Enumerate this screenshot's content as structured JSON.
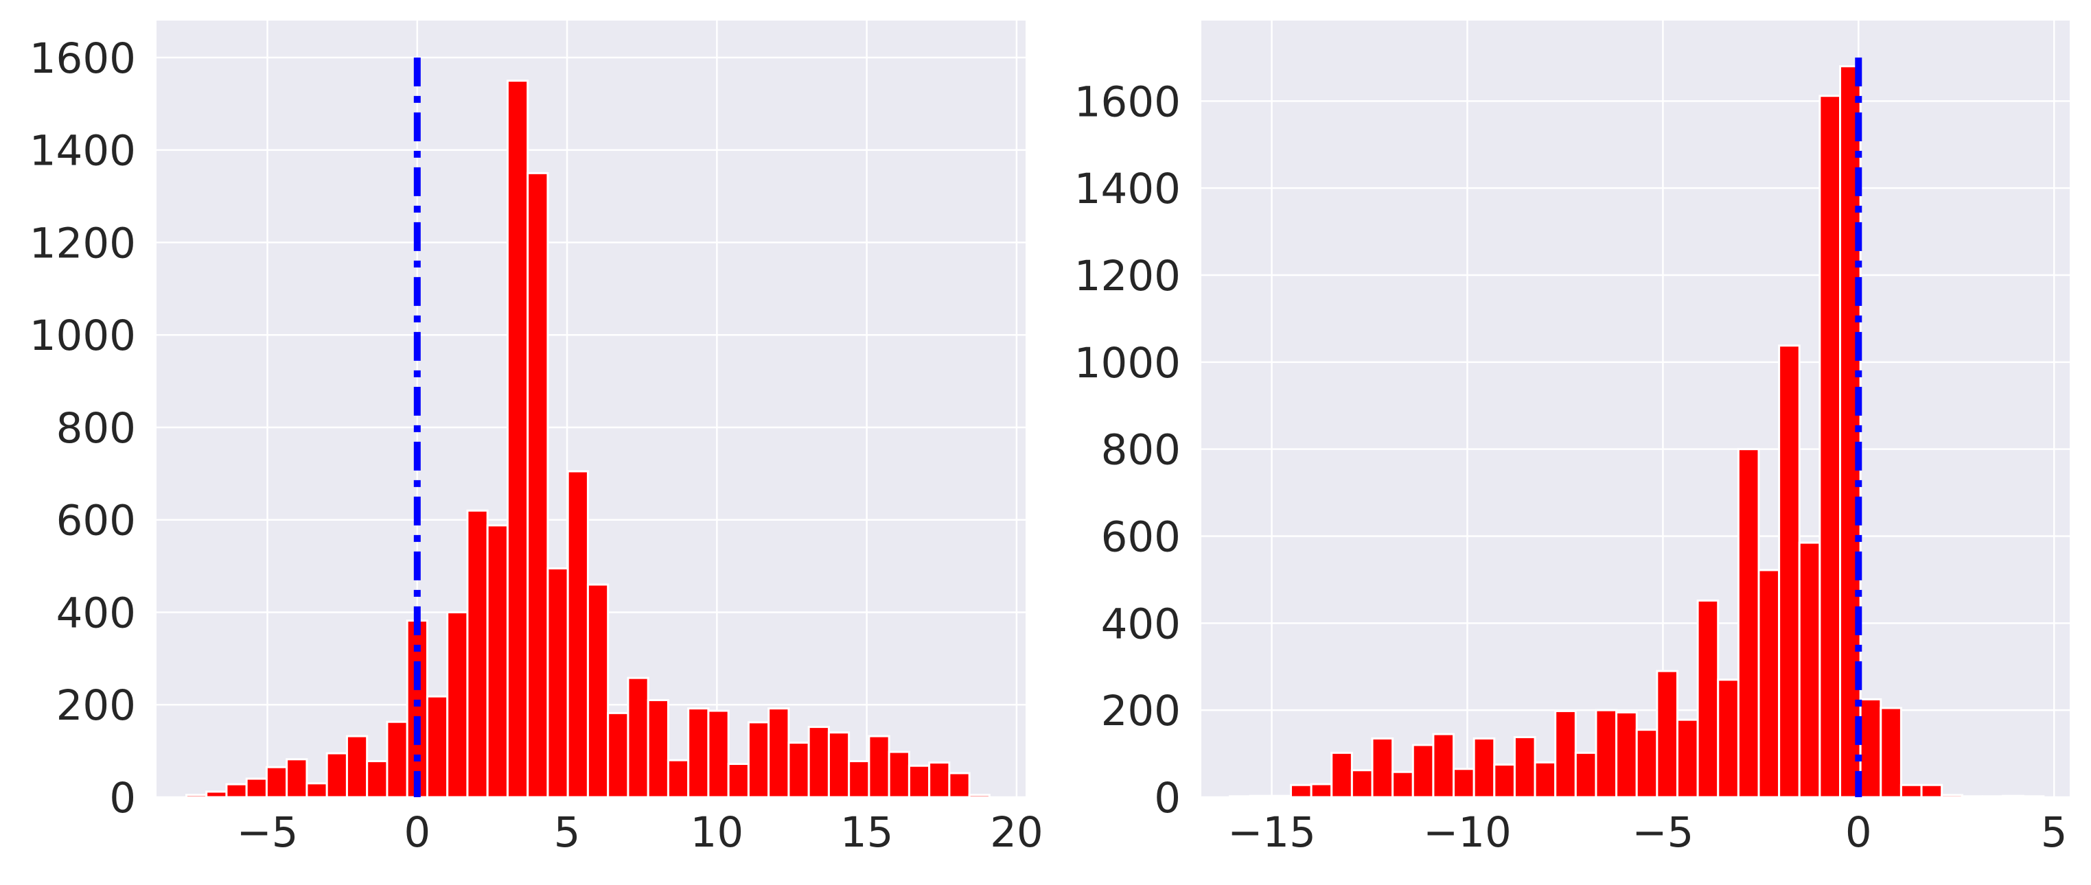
{
  "chart_data": [
    {
      "type": "bar",
      "title": "",
      "xlabel": "",
      "ylabel": "",
      "xlim": [
        -8.7,
        20.3
      ],
      "ylim": [
        0,
        1680
      ],
      "xticks": [
        -5,
        0,
        5,
        10,
        15,
        20
      ],
      "xtick_labels": [
        "−5",
        "0",
        "5",
        "10",
        "15",
        "20"
      ],
      "yticks": [
        0,
        200,
        400,
        600,
        800,
        1000,
        1200,
        1400,
        1600
      ],
      "ytick_labels": [
        "0",
        "200",
        "400",
        "600",
        "800",
        "1000",
        "1200",
        "1400",
        "1600"
      ],
      "grid": true,
      "bar_color": "#ff0000",
      "bar_edge_color": "#ffffff",
      "background": "#eaeaf2",
      "bin_width": 0.67,
      "bins": [
        {
          "x": -7.37,
          "value": 5
        },
        {
          "x": -6.7,
          "value": 12
        },
        {
          "x": -6.03,
          "value": 28
        },
        {
          "x": -5.36,
          "value": 40
        },
        {
          "x": -4.69,
          "value": 65
        },
        {
          "x": -4.02,
          "value": 82
        },
        {
          "x": -3.35,
          "value": 30
        },
        {
          "x": -2.68,
          "value": 95
        },
        {
          "x": -2.01,
          "value": 132
        },
        {
          "x": -1.34,
          "value": 78
        },
        {
          "x": -0.67,
          "value": 163
        },
        {
          "x": 0.0,
          "value": 382
        },
        {
          "x": 0.67,
          "value": 218
        },
        {
          "x": 1.34,
          "value": 400
        },
        {
          "x": 2.01,
          "value": 620
        },
        {
          "x": 2.68,
          "value": 588
        },
        {
          "x": 3.35,
          "value": 1550
        },
        {
          "x": 4.02,
          "value": 1350
        },
        {
          "x": 4.69,
          "value": 495
        },
        {
          "x": 5.36,
          "value": 705
        },
        {
          "x": 6.03,
          "value": 460
        },
        {
          "x": 6.7,
          "value": 182
        },
        {
          "x": 7.37,
          "value": 258
        },
        {
          "x": 8.04,
          "value": 210
        },
        {
          "x": 8.71,
          "value": 80
        },
        {
          "x": 9.38,
          "value": 192
        },
        {
          "x": 10.05,
          "value": 187
        },
        {
          "x": 10.72,
          "value": 72
        },
        {
          "x": 11.39,
          "value": 162
        },
        {
          "x": 12.06,
          "value": 192
        },
        {
          "x": 12.73,
          "value": 118
        },
        {
          "x": 13.4,
          "value": 152
        },
        {
          "x": 14.07,
          "value": 140
        },
        {
          "x": 14.74,
          "value": 78
        },
        {
          "x": 15.41,
          "value": 132
        },
        {
          "x": 16.08,
          "value": 98
        },
        {
          "x": 16.75,
          "value": 68
        },
        {
          "x": 17.42,
          "value": 75
        },
        {
          "x": 18.09,
          "value": 52
        },
        {
          "x": 18.76,
          "value": 5
        }
      ],
      "reference_line": {
        "x": 0,
        "y_top": 1600,
        "color": "#0000ff",
        "style": "dashdot"
      }
    },
    {
      "type": "bar",
      "title": "",
      "xlabel": "",
      "ylabel": "",
      "xlim": [
        -16.8,
        5.4
      ],
      "ylim": [
        0,
        1785
      ],
      "xticks": [
        -15,
        -10,
        -5,
        0,
        5
      ],
      "xtick_labels": [
        "−15",
        "−10",
        "−5",
        "0",
        "5"
      ],
      "yticks": [
        0,
        200,
        400,
        600,
        800,
        1000,
        1200,
        1400,
        1600
      ],
      "ytick_labels": [
        "0",
        "200",
        "400",
        "600",
        "800",
        "1000",
        "1200",
        "1400",
        "1600"
      ],
      "grid": true,
      "bar_color": "#ff0000",
      "bar_edge_color": "#ffffff",
      "background": "#eaeaf2",
      "bin_width": 0.52,
      "bins": [
        {
          "x": -15.81,
          "value": 2
        },
        {
          "x": -15.29,
          "value": 3
        },
        {
          "x": -14.77,
          "value": 3
        },
        {
          "x": -14.25,
          "value": 28
        },
        {
          "x": -13.73,
          "value": 30
        },
        {
          "x": -13.21,
          "value": 102
        },
        {
          "x": -12.69,
          "value": 62
        },
        {
          "x": -12.17,
          "value": 135
        },
        {
          "x": -11.65,
          "value": 58
        },
        {
          "x": -11.13,
          "value": 120
        },
        {
          "x": -10.61,
          "value": 145
        },
        {
          "x": -10.09,
          "value": 65
        },
        {
          "x": -9.57,
          "value": 135
        },
        {
          "x": -9.05,
          "value": 75
        },
        {
          "x": -8.53,
          "value": 138
        },
        {
          "x": -8.01,
          "value": 80
        },
        {
          "x": -7.49,
          "value": 198
        },
        {
          "x": -6.97,
          "value": 102
        },
        {
          "x": -6.45,
          "value": 200
        },
        {
          "x": -5.93,
          "value": 195
        },
        {
          "x": -5.41,
          "value": 155
        },
        {
          "x": -4.89,
          "value": 290
        },
        {
          "x": -4.37,
          "value": 178
        },
        {
          "x": -3.85,
          "value": 452
        },
        {
          "x": -3.33,
          "value": 270
        },
        {
          "x": -2.81,
          "value": 800
        },
        {
          "x": -2.29,
          "value": 522
        },
        {
          "x": -1.77,
          "value": 1038
        },
        {
          "x": -1.25,
          "value": 585
        },
        {
          "x": -0.73,
          "value": 1612
        },
        {
          "x": -0.21,
          "value": 1680
        },
        {
          "x": 0.31,
          "value": 225
        },
        {
          "x": 0.83,
          "value": 205
        },
        {
          "x": 1.35,
          "value": 28
        },
        {
          "x": 1.87,
          "value": 28
        },
        {
          "x": 2.39,
          "value": 5
        },
        {
          "x": 2.91,
          "value": 2
        },
        {
          "x": 3.43,
          "value": 2
        },
        {
          "x": 3.95,
          "value": 3
        },
        {
          "x": 4.47,
          "value": 2
        }
      ],
      "reference_line": {
        "x": 0,
        "y_top": 1700,
        "color": "#0000ff",
        "style": "dashdot"
      }
    }
  ]
}
